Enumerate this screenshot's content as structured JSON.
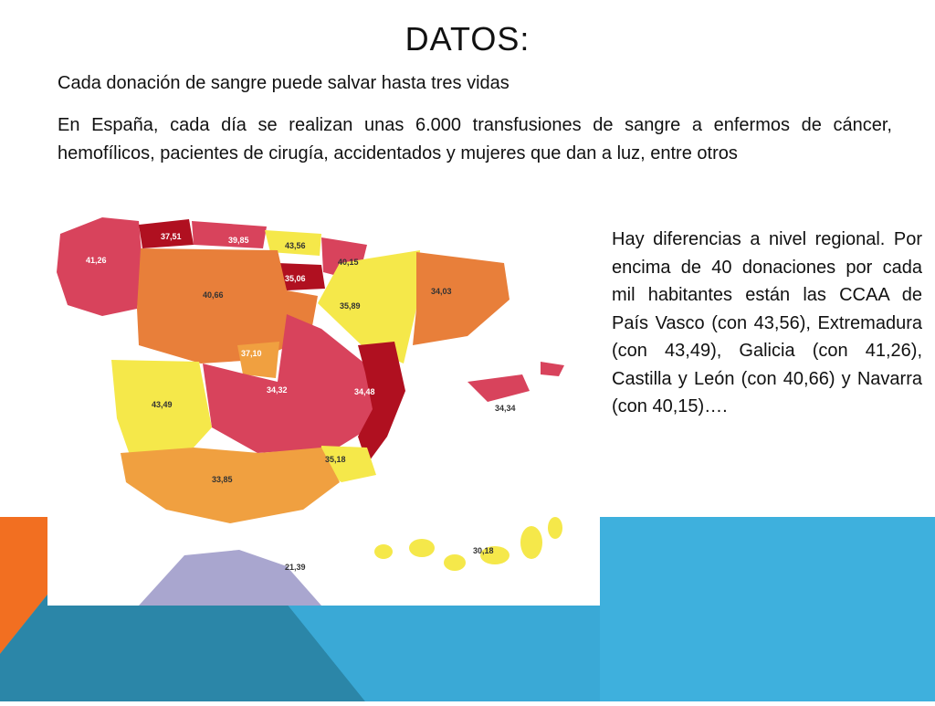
{
  "slide": {
    "title": "DATOS:",
    "line1": "Cada donación de sangre puede salvar hasta tres vidas",
    "line2": "En España, cada día se realizan unas 6.000 transfusiones de sangre a enfermos de cáncer, hemofílicos, pacientes de cirugía, accidentados y mujeres que dan a luz, entre otros",
    "side_text": "Hay diferencias a nivel regional. Por encima de 40 donaciones por cada mil habitantes están las CCAA de País Vasco (con 43,56), Extremadura (con 43,49), Galicia (con 41,26), Castilla y León (con 40,66) y Navarra (con 40,15)…."
  },
  "map": {
    "labels": {
      "galicia": "41,26",
      "asturias": "37,51",
      "cantabria": "39,85",
      "pais_vasco": "43,56",
      "navarra": "40,15",
      "la_rioja": "35,06",
      "castilla_leon": "40,66",
      "aragon": "35,89",
      "cataluna": "34,03",
      "madrid": "37,10",
      "extremadura": "43,49",
      "castilla_la_mancha": "34,32",
      "valencia": "34,48",
      "baleares": "34,34",
      "murcia": "35,18",
      "andalucia": "33,85",
      "ceuta_melilla": "21,39",
      "canarias": "30,18"
    },
    "colors": {
      "dark_red": "#b01020",
      "pink_red": "#d8435c",
      "orange": "#e87f3a",
      "light_orange": "#f0a040",
      "yellow": "#f5e84a",
      "lavender": "#a9a6cf"
    }
  }
}
